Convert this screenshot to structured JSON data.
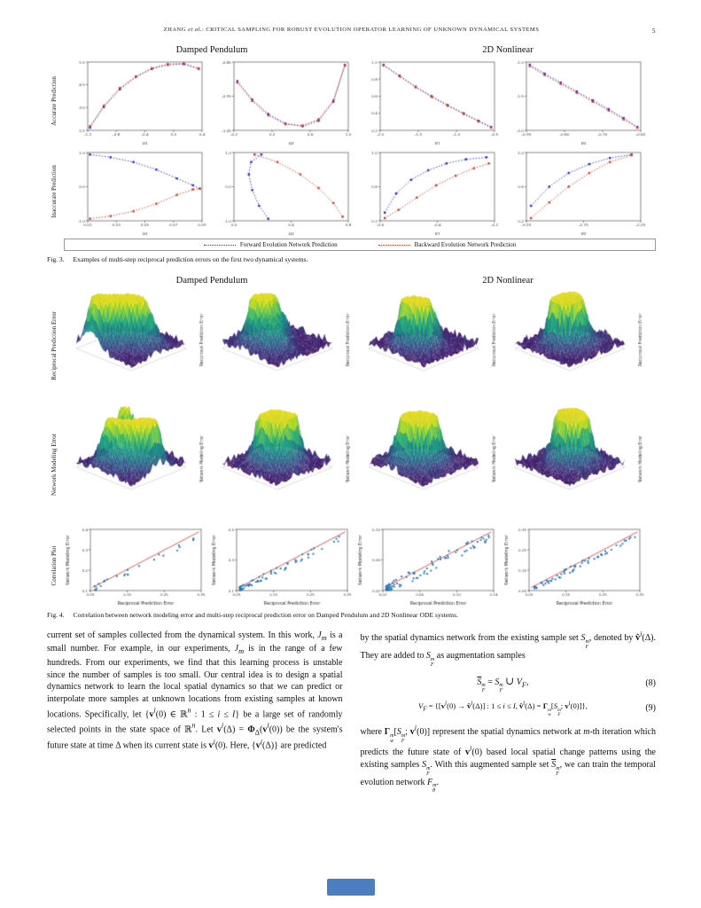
{
  "header": {
    "running_title": "ZHANG <i>et al.</i>: CRITICAL SAMPLING FOR ROBUST EVOLUTION OPERATOR LEARNING OF UNKNOWN DYNAMICAL SYSTEMS",
    "page_number": "5"
  },
  "fig3": {
    "col_titles": [
      "Damped Pendulum",
      "2D Nonlinear"
    ],
    "row_labels": [
      "Accurate Prediction",
      "Inaccurate Prediction"
    ],
    "legend": [
      {
        "label": "Forward Evolution Network Prediction",
        "color": "#2a2ad0"
      },
      {
        "label": "Backward Evolution Network Prediction",
        "color": "#d03a28"
      }
    ],
    "caption_label": "Fig. 3.",
    "caption_text": "Examples of multi-step reciprocal prediction errors on the first two dynamical systems.",
    "plots": [
      {
        "xlabel": "u₁",
        "xticks": [
          "-1.2",
          "-0.8",
          "-0.4",
          "0.0",
          "0.4"
        ],
        "yticks": [
          "2.5",
          "3.5",
          "4.5",
          "5.5"
        ],
        "fwd": [
          [
            0.02,
            0.04
          ],
          [
            0.14,
            0.34
          ],
          [
            0.28,
            0.6
          ],
          [
            0.42,
            0.78
          ],
          [
            0.56,
            0.9
          ],
          [
            0.7,
            0.96
          ],
          [
            0.84,
            0.97
          ],
          [
            0.97,
            0.9
          ]
        ],
        "bwd": [
          [
            0.02,
            0.06
          ],
          [
            0.14,
            0.36
          ],
          [
            0.28,
            0.62
          ],
          [
            0.42,
            0.79
          ],
          [
            0.56,
            0.91
          ],
          [
            0.7,
            0.97
          ],
          [
            0.84,
            0.98
          ],
          [
            0.97,
            0.91
          ]
        ]
      },
      {
        "xlabel": "u₂",
        "xticks": [
          "-0.2",
          "0.2",
          "0.6",
          "1.0"
        ],
        "yticks": [
          "-1.05",
          "-0.95",
          "-0.85"
        ],
        "fwd": [
          [
            0.03,
            0.72
          ],
          [
            0.16,
            0.45
          ],
          [
            0.3,
            0.24
          ],
          [
            0.45,
            0.1
          ],
          [
            0.6,
            0.06
          ],
          [
            0.74,
            0.14
          ],
          [
            0.87,
            0.42
          ],
          [
            0.97,
            0.95
          ]
        ],
        "bwd": [
          [
            0.03,
            0.7
          ],
          [
            0.16,
            0.43
          ],
          [
            0.3,
            0.22
          ],
          [
            0.45,
            0.09
          ],
          [
            0.6,
            0.07
          ],
          [
            0.74,
            0.16
          ],
          [
            0.87,
            0.44
          ],
          [
            0.97,
            0.96
          ]
        ]
      },
      {
        "xlabel": "v₁",
        "xticks": [
          "-2.0",
          "-1.5",
          "-1.0",
          "-0.5"
        ],
        "yticks": [
          "0.2",
          "0.4",
          "0.6",
          "0.8",
          "1.0"
        ],
        "fwd": [
          [
            0.03,
            0.96
          ],
          [
            0.17,
            0.8
          ],
          [
            0.31,
            0.64
          ],
          [
            0.45,
            0.5
          ],
          [
            0.59,
            0.37
          ],
          [
            0.73,
            0.25
          ],
          [
            0.86,
            0.14
          ],
          [
            0.97,
            0.05
          ]
        ],
        "bwd": [
          [
            0.03,
            0.95
          ],
          [
            0.17,
            0.79
          ],
          [
            0.31,
            0.63
          ],
          [
            0.45,
            0.49
          ],
          [
            0.59,
            0.36
          ],
          [
            0.73,
            0.24
          ],
          [
            0.86,
            0.13
          ],
          [
            0.97,
            0.04
          ]
        ]
      },
      {
        "xlabel": "v₂",
        "xticks": [
          "-0.90",
          "-0.80",
          "-0.70",
          "-0.60"
        ],
        "yticks": [
          "-2.0",
          "-1.5",
          "-1.0"
        ],
        "fwd": [
          [
            0.03,
            0.96
          ],
          [
            0.16,
            0.83
          ],
          [
            0.3,
            0.7
          ],
          [
            0.44,
            0.57
          ],
          [
            0.58,
            0.44
          ],
          [
            0.72,
            0.31
          ],
          [
            0.85,
            0.18
          ],
          [
            0.97,
            0.05
          ]
        ],
        "bwd": [
          [
            0.03,
            0.94
          ],
          [
            0.16,
            0.81
          ],
          [
            0.3,
            0.68
          ],
          [
            0.44,
            0.55
          ],
          [
            0.58,
            0.42
          ],
          [
            0.72,
            0.29
          ],
          [
            0.85,
            0.16
          ],
          [
            0.97,
            0.04
          ]
        ]
      },
      {
        "xlabel": "u₁",
        "xticks": [
          "0.01",
          "0.03",
          "0.05",
          "0.07",
          "0.09"
        ],
        "yticks": [
          "-1.0",
          "0.0",
          "1.0"
        ],
        "fwd": [
          [
            0.02,
            0.97
          ],
          [
            0.2,
            0.93
          ],
          [
            0.4,
            0.86
          ],
          [
            0.6,
            0.75
          ],
          [
            0.78,
            0.62
          ],
          [
            0.92,
            0.52
          ],
          [
            0.98,
            0.47
          ]
        ],
        "bwd": [
          [
            0.02,
            0.03
          ],
          [
            0.2,
            0.07
          ],
          [
            0.4,
            0.14
          ],
          [
            0.6,
            0.25
          ],
          [
            0.78,
            0.38
          ],
          [
            0.92,
            0.46
          ],
          [
            0.98,
            0.47
          ]
        ]
      },
      {
        "xlabel": "u₂",
        "xticks": [
          "0.0",
          "0.4",
          "0.8"
        ],
        "yticks": [
          "-1.0",
          "0.0",
          "1.0"
        ],
        "fwd": [
          [
            0.3,
            0.03
          ],
          [
            0.22,
            0.22
          ],
          [
            0.16,
            0.45
          ],
          [
            0.13,
            0.68
          ],
          [
            0.15,
            0.86
          ],
          [
            0.24,
            0.97
          ]
        ],
        "bwd": [
          [
            0.18,
            0.97
          ],
          [
            0.38,
            0.86
          ],
          [
            0.58,
            0.68
          ],
          [
            0.74,
            0.48
          ],
          [
            0.87,
            0.26
          ],
          [
            0.95,
            0.06
          ]
        ]
      },
      {
        "xlabel": "v₁",
        "xticks": [
          "-0.6",
          "-0.4",
          "-0.2"
        ],
        "yticks": [
          "0.2",
          "0.6",
          "1.0"
        ],
        "fwd": [
          [
            0.04,
            0.12
          ],
          [
            0.14,
            0.4
          ],
          [
            0.27,
            0.6
          ],
          [
            0.42,
            0.74
          ],
          [
            0.58,
            0.84
          ],
          [
            0.75,
            0.9
          ],
          [
            0.93,
            0.93
          ]
        ],
        "bwd": [
          [
            0.04,
            0.04
          ],
          [
            0.16,
            0.16
          ],
          [
            0.32,
            0.34
          ],
          [
            0.49,
            0.52
          ],
          [
            0.66,
            0.66
          ],
          [
            0.82,
            0.77
          ],
          [
            0.95,
            0.84
          ]
        ]
      },
      {
        "xlabel": "v₂",
        "xticks": [
          "-3.25",
          "-2.75",
          "-2.25"
        ],
        "yticks": [
          "0.2",
          "0.6",
          "1.0"
        ],
        "fwd": [
          [
            0.04,
            0.22
          ],
          [
            0.2,
            0.5
          ],
          [
            0.37,
            0.7
          ],
          [
            0.55,
            0.83
          ],
          [
            0.73,
            0.92
          ],
          [
            0.92,
            0.97
          ]
        ],
        "bwd": [
          [
            0.04,
            0.04
          ],
          [
            0.2,
            0.27
          ],
          [
            0.37,
            0.5
          ],
          [
            0.55,
            0.7
          ],
          [
            0.73,
            0.86
          ],
          [
            0.92,
            0.96
          ]
        ]
      }
    ]
  },
  "fig4": {
    "col_titles": [
      "Damped Pendulum",
      "2D Nonlinear"
    ],
    "row_labels": [
      "Reciprocal Prediction Error",
      "Network Modeling Error",
      "Correlation Plot"
    ],
    "surface_zlabels": [
      "Reciprocal Prediction Error",
      "Network Modeling Error"
    ],
    "surfaces": [
      {
        "seed": 7,
        "spikes": 6,
        "spread": 0.62
      },
      {
        "seed": 23,
        "spikes": 5,
        "spread": 0.55
      },
      {
        "seed": 41,
        "spikes": 5,
        "spread": 0.34
      },
      {
        "seed": 59,
        "spikes": 6,
        "spread": 0.3
      },
      {
        "seed": 73,
        "spikes": 6,
        "spread": 0.6
      },
      {
        "seed": 89,
        "spikes": 5,
        "spread": 0.5
      },
      {
        "seed": 104,
        "spikes": 5,
        "spread": 0.34
      },
      {
        "seed": 131,
        "spikes": 6,
        "spread": 0.3
      }
    ],
    "scatter": {
      "xlabel": "Reciprocal Prediction Error",
      "ylabel": "Network Modeling Error",
      "plots": [
        {
          "seed": 5,
          "n": 26,
          "pow": 1.6,
          "noise": 0.18,
          "xticks": [
            "0.05",
            "0.15",
            "0.25",
            "0.35"
          ],
          "yticks": [
            "0.1",
            "0.2",
            "0.3",
            "0.4"
          ]
        },
        {
          "seed": 9,
          "n": 75,
          "pow": 2.6,
          "noise": 0.12,
          "xticks": [
            "0.05",
            "0.15",
            "0.25",
            "0.35"
          ],
          "yticks": [
            "0.1",
            "0.3",
            "0.5"
          ]
        },
        {
          "seed": 13,
          "n": 90,
          "pow": 2.2,
          "noise": 0.2,
          "xticks": [
            "0.02",
            "0.06",
            "0.10",
            "0.14"
          ],
          "yticks": [
            "0.02",
            "0.06",
            "0.10"
          ]
        },
        {
          "seed": 21,
          "n": 60,
          "pow": 1.2,
          "noise": 0.1,
          "xticks": [
            "0.05",
            "0.15",
            "0.25",
            "0.35"
          ],
          "yticks": [
            "0.05",
            "0.15",
            "0.25",
            "0.35"
          ]
        }
      ]
    },
    "caption_label": "Fig. 4.",
    "caption_text": "Correlation between network modeling error and multi-step reciprocal prediction error on Damped Pendulum and 2D Nonlinear ODE systems.",
    "dot_color": "#1f77b4",
    "line_color": "#e03030"
  },
  "body": {
    "left": "current set of samples collected from the dynamical system. In this work, <i>J<sub>m</sub></i> is a small number. For example, in our experiments, <i>J<sub>m</sub></i> is in the range of a few hundreds. From our experiments, we find that this learning process is unstable since the number of samples is too small. Our central idea is to design a spatial dynamics network to learn the local spatial dynamics so that we can predict or interpolate more samples at unknown locations from existing samples at known locations. Specifically, let {<b>v</b><i><sup>i</sup></i>(0) ∈ ℝ<i><sup>n</sup></i> : 1 ≤ <i>i</i> ≤ <i>I</i>} be a large set of randomly selected points in the state space of ℝ<i><sup>n</sup></i>. Let <b>v</b><i><sup>i</sup></i>(Δ) = <b>Φ</b><sub>Δ</sub>(<b>v</b><i><sup>i</sup></i>(0)) be the system's future state at time Δ when its current state is <b>v</b><i><sup>i</sup></i>(0). Here, {<b>v</b><i><sup>i</sup></i>(Δ)} are predicted",
    "right_intro": "by the spatial dynamics network from the existing sample set <i>S</i><span class='ss'><span>m</span><span>F</span></span>, denoted by <b>v̂</b><i><sup>i</sup></i>(Δ). They are added to <i>S</i><span class='ss'><span>m</span><span>F</span></span> as augmentation samples",
    "eq8": "<span class='ol'><i>S</i></span><span class='ss'><span>m</span><span>F</span></span> = <i>S</i><span class='ss'><span>m</span><span>F</span></span> <span class='cup'>∪</span> <i>V<sub>F</sub></i>,",
    "eq8_num": "(8)",
    "eq9": "<i>V<sub>F</sub></i> = {[<b>v</b><i><sup>i</sup></i>(0) → <b>v̂</b><i><sup>i</sup></i>(Δ)] : 1 ≤ <i>i</i> ≤ <i>I</i>, <b>v̂</b><i><sup>i</sup></i>(Δ) = <b>Γ</b><span class='ss'><span>m</span><span>w</span></span>[<i>S</i><span class='ss'><span>m</span><span>F</span></span>; <b>v</b><i><sup>i</sup></i>(0)]},",
    "eq9_num": "(9)",
    "right_outro": "where <b>Γ</b><span class='ss'><span>m</span><span>w</span></span>[<i>S</i><span class='ss'><span>m</span><span>F</span></span>; <b>v</b><i><sup>i</sup></i>(0)] represent the spatial dynamics network at <i>m</i>-th iteration which predicts the future state of <b>v</b><i><sup>i</sup></i>(0) based local spatial change patterns using the existing samples <i>S</i><span class='ss'><span>m</span><span>F</span></span>. With this augmented sample set <span class='ol'><i>S</i></span><span class='ss'><span>m</span><span>F</span></span>, we can train the temporal evolution network <i>F</i><span class='ss'><span>m</span><span>θ</span></span>."
  }
}
